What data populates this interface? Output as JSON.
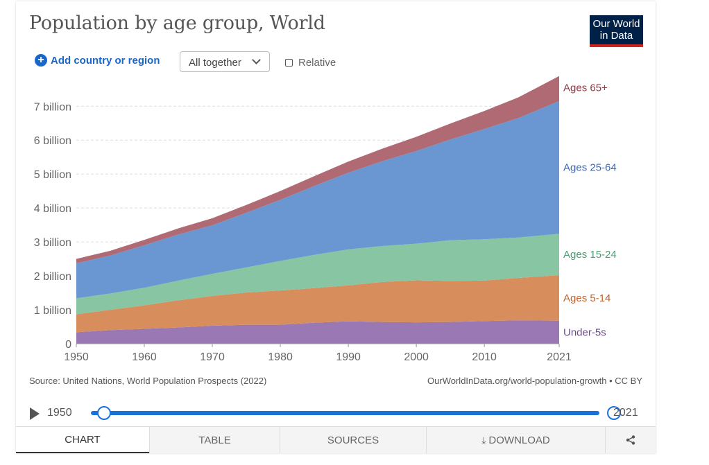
{
  "header": {
    "title": "Population by age group, World",
    "logo_line1": "Our World",
    "logo_line2": "in Data"
  },
  "controls": {
    "add_label": "Add country or region",
    "select_value": "All together",
    "relative_label": "Relative"
  },
  "chart_data": {
    "type": "area",
    "stacked": true,
    "title": "Population by age group, World",
    "x": [
      1950,
      1955,
      1960,
      1965,
      1970,
      1975,
      1980,
      1985,
      1990,
      1995,
      2000,
      2005,
      2010,
      2015,
      2021
    ],
    "xticks": [
      1950,
      1960,
      1970,
      1980,
      1990,
      2000,
      2010,
      2021
    ],
    "xtick_labels": [
      "1950",
      "1960",
      "1970",
      "1980",
      "1990",
      "2000",
      "2010",
      "2021"
    ],
    "ylim": [
      0,
      7.7
    ],
    "yticks": [
      0,
      1,
      2,
      3,
      4,
      5,
      6,
      7
    ],
    "ytick_labels": [
      "0",
      "1 billion",
      "2 billion",
      "3 billion",
      "4 billion",
      "5 billion",
      "6 billion",
      "7 billion"
    ],
    "unit": "billion",
    "series": [
      {
        "name": "Under-5s",
        "color": "#9a78b4",
        "label_color": "#6b4a8a",
        "values": [
          0.34,
          0.4,
          0.44,
          0.48,
          0.53,
          0.56,
          0.56,
          0.62,
          0.66,
          0.64,
          0.63,
          0.64,
          0.67,
          0.69,
          0.68
        ]
      },
      {
        "name": "Ages 5-14",
        "color": "#d88d5c",
        "label_color": "#c0622a",
        "values": [
          0.53,
          0.6,
          0.69,
          0.8,
          0.88,
          0.95,
          1.01,
          1.02,
          1.06,
          1.18,
          1.24,
          1.21,
          1.19,
          1.25,
          1.34
        ]
      },
      {
        "name": "Ages 15-24",
        "color": "#88c5a3",
        "label_color": "#4e9c73",
        "values": [
          0.47,
          0.48,
          0.52,
          0.58,
          0.65,
          0.74,
          0.87,
          0.98,
          1.06,
          1.06,
          1.08,
          1.2,
          1.22,
          1.19,
          1.22
        ]
      },
      {
        "name": "Ages 25-64",
        "color": "#6a97d1",
        "label_color": "#3c68b0",
        "values": [
          1.03,
          1.12,
          1.25,
          1.36,
          1.43,
          1.61,
          1.8,
          2.03,
          2.26,
          2.5,
          2.73,
          2.97,
          3.25,
          3.52,
          3.91
        ]
      },
      {
        "name": "Ages 65+",
        "color": "#b06a73",
        "label_color": "#8b3b44",
        "values": [
          0.13,
          0.14,
          0.16,
          0.18,
          0.21,
          0.23,
          0.26,
          0.29,
          0.33,
          0.37,
          0.42,
          0.47,
          0.53,
          0.61,
          0.74
        ]
      }
    ]
  },
  "footer": {
    "source": "Source: United Nations, World Population Prospects (2022)",
    "url": "OurWorldInData.org/world-population-growth • CC BY"
  },
  "timeline": {
    "start": "1950",
    "end": "2021"
  },
  "tabs": [
    {
      "label": "CHART"
    },
    {
      "label": "TABLE"
    },
    {
      "label": "SOURCES"
    },
    {
      "label": "DOWNLOAD"
    }
  ]
}
